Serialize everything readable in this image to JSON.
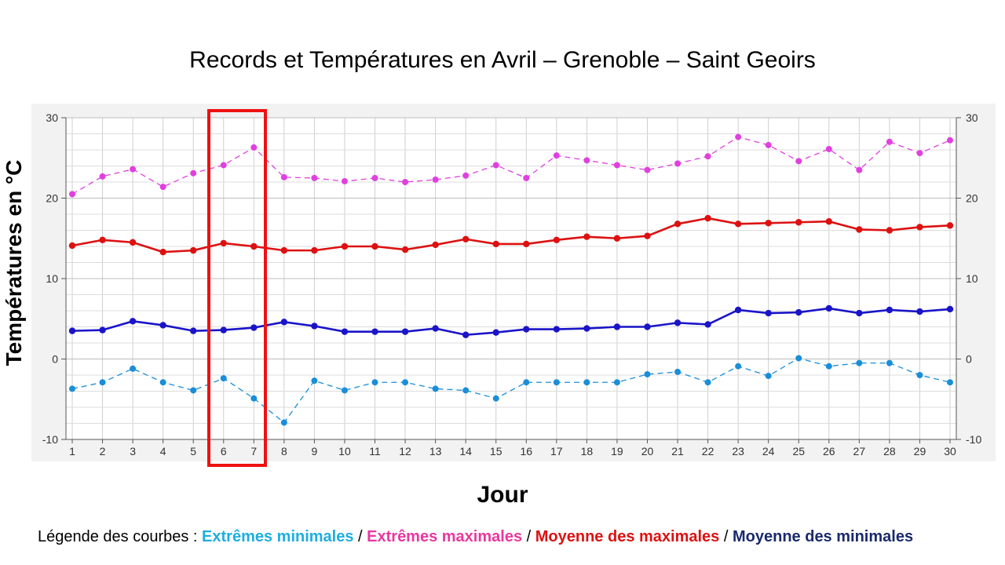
{
  "chart_data": {
    "type": "line",
    "title": "Records et Températures en Avril – Grenoble – Saint Geoirs",
    "xlabel": "Jour",
    "ylabel": "Températures en °C",
    "x": [
      1,
      2,
      3,
      4,
      5,
      6,
      7,
      8,
      9,
      10,
      11,
      12,
      13,
      14,
      15,
      16,
      17,
      18,
      19,
      20,
      21,
      22,
      23,
      24,
      25,
      26,
      27,
      28,
      29,
      30
    ],
    "ylim": [
      -10,
      30
    ],
    "yticks": [
      -10,
      0,
      10,
      20,
      30
    ],
    "grid": true,
    "highlight_days": [
      6,
      7
    ],
    "series": [
      {
        "name": "Extrêmes maximales",
        "color": "#e040e0",
        "style": "dashed",
        "values": [
          20.5,
          22.7,
          23.6,
          21.4,
          23.1,
          24.1,
          26.3,
          22.6,
          22.5,
          22.1,
          22.5,
          22.0,
          22.3,
          22.8,
          24.1,
          22.5,
          25.3,
          24.7,
          24.1,
          23.5,
          24.3,
          25.2,
          27.6,
          26.6,
          24.6,
          26.1,
          23.5,
          27.0,
          25.6,
          27.2
        ]
      },
      {
        "name": "Moyenne des maximales",
        "color": "#dd1111",
        "style": "solid",
        "values": [
          14.1,
          14.8,
          14.5,
          13.3,
          13.5,
          14.4,
          14.0,
          13.5,
          13.5,
          14.0,
          14.0,
          13.6,
          14.2,
          14.9,
          14.3,
          14.3,
          14.8,
          15.2,
          15.0,
          15.3,
          16.8,
          17.5,
          16.8,
          16.9,
          17.0,
          17.1,
          16.1,
          16.0,
          16.4,
          16.6
        ]
      },
      {
        "name": "Moyenne des minimales",
        "color": "#1a14c8",
        "style": "solid",
        "values": [
          3.5,
          3.6,
          4.7,
          4.2,
          3.5,
          3.6,
          3.9,
          4.6,
          4.1,
          3.4,
          3.4,
          3.4,
          3.8,
          3.0,
          3.3,
          3.7,
          3.7,
          3.8,
          4.0,
          4.0,
          4.5,
          4.3,
          6.1,
          5.7,
          5.8,
          6.3,
          5.7,
          6.1,
          5.9,
          6.2
        ]
      },
      {
        "name": "Extrêmes minimales",
        "color": "#1a8ed8",
        "style": "dashed",
        "values": [
          -3.7,
          -2.9,
          -1.2,
          -2.9,
          -3.9,
          -2.4,
          -4.9,
          -7.9,
          -2.7,
          -3.9,
          -2.9,
          -2.9,
          -3.7,
          -3.9,
          -4.9,
          -2.9,
          -2.9,
          -2.9,
          -2.9,
          -1.9,
          -1.6,
          -2.9,
          -0.9,
          -2.1,
          0.1,
          -0.9,
          -0.5,
          -0.5,
          -2.0,
          -2.9
        ]
      }
    ]
  },
  "legend": {
    "prefix": "Légende des courbes : ",
    "items": [
      {
        "label": "Extrêmes minimales",
        "color": "#1eaee0"
      },
      {
        "label": "Extrêmes maximales",
        "color": "#e8389e"
      },
      {
        "label": "Moyenne des maximales",
        "color": "#dd1111"
      },
      {
        "label": "Moyenne des minimales",
        "color": "#1a2a6c"
      }
    ],
    "separator": " / "
  }
}
